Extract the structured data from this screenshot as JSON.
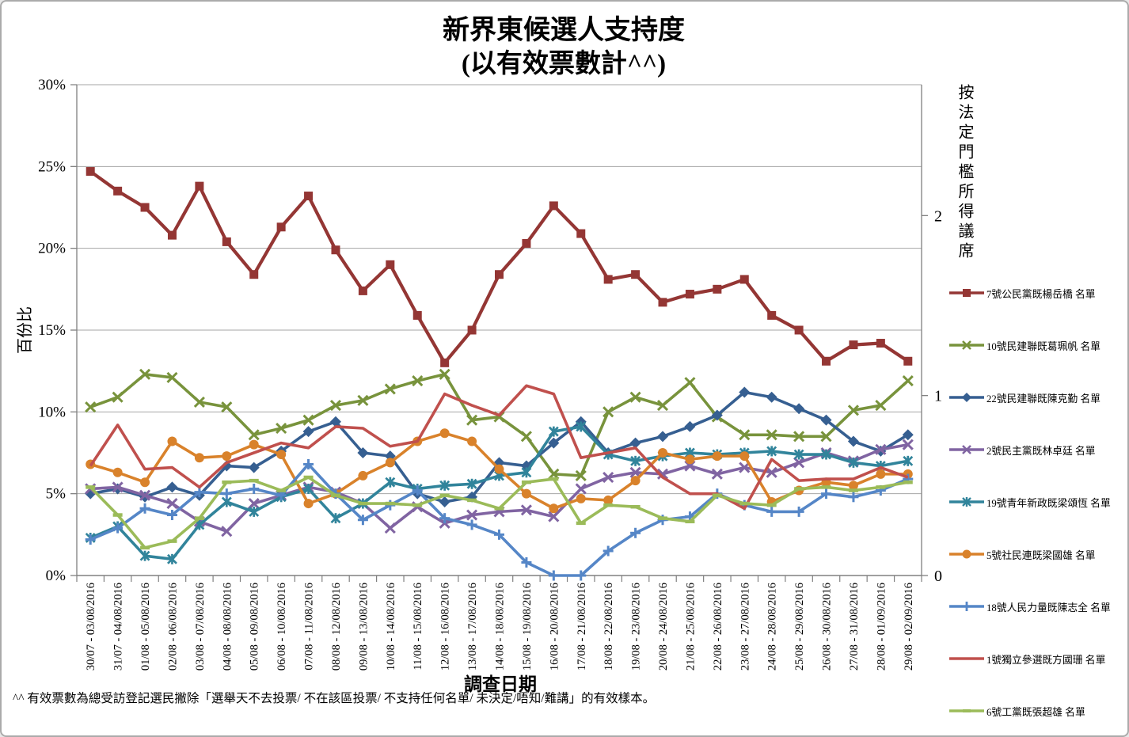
{
  "title": {
    "line1": "新界東候選人支持度",
    "line2": "(以有效票數計^^)"
  },
  "footnote": "^^ 有效票數為總受訪登記選民撇除「選舉天不去投票/ 不在該區投票/ 不支持任何名單/ 未決定/唔知/難講」的有效樣本。",
  "chart_data": {
    "type": "line",
    "title": "新界東候選人支持度 (以有效票數計^^)",
    "xlabel": "調查日期",
    "ylabel": "百份比",
    "ylabel_right": "按法定門檻所得議席",
    "ylim": [
      0,
      30
    ],
    "grid": true,
    "legend_position": "right",
    "yticks": [
      {
        "v": 0,
        "label": "0%"
      },
      {
        "v": 5,
        "label": "5%"
      },
      {
        "v": 10,
        "label": "10%"
      },
      {
        "v": 15,
        "label": "15%"
      },
      {
        "v": 20,
        "label": "20%"
      },
      {
        "v": 25,
        "label": "25%"
      },
      {
        "v": 30,
        "label": "30%"
      }
    ],
    "right_axis_ticks": [
      {
        "label": "0",
        "pct": 0
      },
      {
        "label": "1",
        "pct": 11
      },
      {
        "label": "2",
        "pct": 22
      }
    ],
    "categories": [
      "30/07 - 03/08/2016",
      "31/07 - 04/08/2016",
      "01/08 - 05/08/2016",
      "02/08 - 06/08/2016",
      "03/08 - 07/08/2016",
      "04/08 - 08/08/2016",
      "05/08 - 09/08/2016",
      "06/08 - 10/08/2016",
      "07/08 - 11/08/2016",
      "08/08 - 12/08/2016",
      "09/08 - 13/08/2016",
      "10/08 - 14/08/2016",
      "11/08 - 15/08/2016",
      "12/08 - 16/08/2016",
      "13/08 - 17/08/2016",
      "14/08 - 18/08/2016",
      "15/08 - 19/08/2016",
      "16/08 - 20/08/2016",
      "17/08 - 21/08/2016",
      "18/08 - 22/08/2016",
      "19/08 - 23/08/2016",
      "20/08 - 24/08/2016",
      "21/08 - 25/08/2016",
      "22/08 - 26/08/2016",
      "23/08 - 27/08/2016",
      "24/08 - 28/08/2016",
      "25/08 - 29/08/2016",
      "26/08 - 30/08/2016",
      "27/08 - 31/08/2016",
      "28/08 - 01/09/2016",
      "29/08 - 02/09/2016"
    ],
    "series": [
      {
        "name": "7號公民黨既楊岳橋 名單",
        "color": "#943634",
        "marker": "square",
        "line_width": 4.2,
        "values": [
          24.7,
          23.5,
          22.5,
          20.8,
          23.8,
          20.4,
          18.4,
          21.3,
          23.2,
          19.9,
          17.4,
          19.0,
          15.9,
          13.0,
          15.0,
          18.4,
          20.3,
          22.6,
          20.9,
          18.1,
          18.4,
          16.7,
          17.2,
          17.5,
          18.1,
          15.9,
          15.0,
          13.1,
          14.1,
          14.2,
          13.1
        ]
      },
      {
        "name": "10號民建聯既葛珮帆 名單",
        "color": "#78933c",
        "marker": "x",
        "line_width": 3.6,
        "values": [
          10.3,
          10.9,
          12.3,
          12.1,
          10.6,
          10.3,
          8.6,
          9.0,
          9.5,
          10.4,
          10.7,
          11.4,
          11.9,
          12.3,
          9.5,
          9.7,
          8.5,
          6.2,
          6.1,
          10.0,
          10.9,
          10.4,
          11.8,
          9.7,
          8.6,
          8.6,
          8.5,
          8.5,
          10.1,
          10.4,
          11.9
        ]
      },
      {
        "name": "22號民建聯既陳克勤 名單",
        "color": "#365f91",
        "marker": "diamond",
        "line_width": 3.6,
        "values": [
          5.0,
          5.3,
          4.8,
          5.4,
          4.9,
          6.7,
          6.6,
          7.6,
          8.8,
          9.4,
          7.5,
          7.3,
          5.0,
          4.5,
          4.8,
          6.9,
          6.7,
          8.1,
          9.4,
          7.5,
          8.1,
          8.5,
          9.1,
          9.8,
          11.2,
          10.9,
          10.2,
          9.5,
          8.2,
          7.6,
          8.6
        ]
      },
      {
        "name": "2號民主黨既林卓廷 名單",
        "color": "#8064a2",
        "marker": "x",
        "line_width": 3.6,
        "values": [
          5.3,
          5.4,
          4.9,
          4.4,
          3.3,
          2.7,
          4.4,
          4.9,
          5.4,
          5.1,
          4.4,
          2.9,
          4.2,
          3.2,
          3.7,
          3.9,
          4.0,
          3.6,
          5.3,
          6.0,
          6.3,
          6.2,
          6.7,
          6.2,
          6.6,
          6.3,
          6.9,
          7.5,
          7.0,
          7.7,
          8.0
        ]
      },
      {
        "name": "19號青年新政既梁頌恆 名單",
        "color": "#31849b",
        "marker": "star",
        "line_width": 3.6,
        "values": [
          2.3,
          3.0,
          1.2,
          1.0,
          3.1,
          4.5,
          3.9,
          4.8,
          5.3,
          3.5,
          4.4,
          5.7,
          5.3,
          5.5,
          5.6,
          6.1,
          6.3,
          8.8,
          9.1,
          7.4,
          7.0,
          7.3,
          7.5,
          7.4,
          7.5,
          7.6,
          7.4,
          7.4,
          6.9,
          6.7,
          7.0
        ]
      },
      {
        "name": "5號社民連既梁國雄 名單",
        "color": "#d9822b",
        "marker": "circle",
        "line_width": 3.6,
        "values": [
          6.8,
          6.3,
          5.7,
          8.2,
          7.2,
          7.3,
          8.0,
          7.4,
          4.4,
          5.0,
          6.1,
          6.9,
          8.2,
          8.7,
          8.2,
          6.5,
          5.0,
          4.1,
          4.7,
          4.6,
          5.8,
          7.5,
          7.1,
          7.3,
          7.3,
          4.5,
          5.2,
          5.7,
          5.5,
          6.2,
          6.2
        ]
      },
      {
        "name": "18號人民力量既陳志全 名單",
        "color": "#5586c7",
        "marker": "plus",
        "line_width": 3.6,
        "values": [
          2.2,
          2.9,
          4.1,
          3.7,
          5.1,
          5.0,
          5.3,
          4.9,
          6.8,
          5.0,
          3.4,
          4.3,
          5.2,
          3.5,
          3.1,
          2.5,
          0.8,
          0.0,
          0.0,
          1.5,
          2.6,
          3.4,
          3.6,
          5.0,
          4.3,
          3.9,
          3.9,
          5.0,
          4.8,
          5.2,
          5.9
        ]
      },
      {
        "name": "1號獨立參選既方國珊 名單",
        "color": "#c0504d",
        "marker": "none",
        "line_width": 3.6,
        "values": [
          6.7,
          9.2,
          6.5,
          6.6,
          5.4,
          6.9,
          7.5,
          8.1,
          7.8,
          9.1,
          9.0,
          7.9,
          8.2,
          11.1,
          10.4,
          9.8,
          11.6,
          11.1,
          7.2,
          7.5,
          7.8,
          6.0,
          5.0,
          5.0,
          4.1,
          7.1,
          5.8,
          5.9,
          5.9,
          6.6,
          6.0
        ]
      },
      {
        "name": "6號工黨既張超雄 名單",
        "color": "#9bbb59",
        "marker": "dash",
        "line_width": 3.6,
        "values": [
          5.4,
          3.7,
          1.7,
          2.1,
          3.5,
          5.7,
          5.8,
          5.2,
          6.0,
          4.9,
          4.4,
          4.4,
          4.3,
          4.9,
          4.6,
          4.1,
          5.7,
          5.9,
          3.2,
          4.3,
          4.2,
          3.5,
          3.3,
          4.9,
          4.4,
          4.3,
          5.3,
          5.4,
          5.2,
          5.4,
          5.7
        ]
      }
    ]
  }
}
